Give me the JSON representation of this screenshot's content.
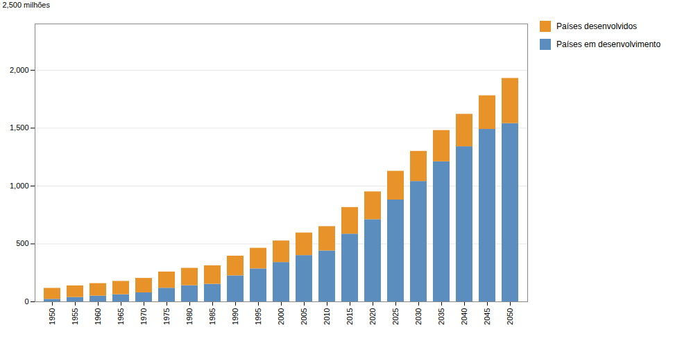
{
  "chart_data": {
    "type": "bar",
    "stacked": true,
    "ylabel": "2,500 milhões",
    "categories": [
      "1950",
      "1955",
      "1960",
      "1965",
      "1970",
      "1975",
      "1980",
      "1985",
      "1990",
      "1995",
      "2000",
      "2005",
      "2010",
      "2015",
      "2020",
      "2025",
      "2030",
      "2035",
      "2040",
      "2045",
      "2050"
    ],
    "series": [
      {
        "name": "Países em desenvolvimento",
        "color": "#5B8DBE",
        "values": [
          22,
          38,
          50,
          62,
          78,
          118,
          140,
          152,
          225,
          285,
          340,
          400,
          440,
          585,
          710,
          880,
          1040,
          1210,
          1340,
          1490,
          1540
        ]
      },
      {
        "name": "Países desenvolvidos",
        "color": "#E8922A",
        "values": [
          95,
          100,
          108,
          115,
          125,
          140,
          150,
          160,
          170,
          178,
          186,
          195,
          210,
          230,
          240,
          248,
          260,
          270,
          280,
          290,
          390
        ]
      }
    ],
    "ylim": [
      0,
      2400
    ],
    "yticks": [
      0,
      500,
      {
        "value": 1000,
        "label": "1,000"
      },
      {
        "value": 1500,
        "label": "1,500"
      },
      {
        "value": 2000,
        "label": "2,000"
      }
    ],
    "grid": true,
    "legend": "right"
  }
}
